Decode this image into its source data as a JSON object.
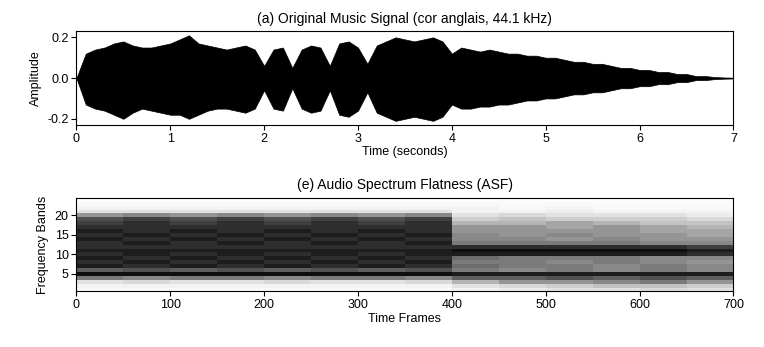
{
  "chart_data": [
    {
      "type": "area",
      "title": "(a) Original Music Signal (cor anglais, 44.1 kHz)",
      "x_label": "Time (seconds)",
      "y_label": "Amplitude",
      "color": "#000000",
      "grid": false,
      "x": [
        0.0,
        0.1,
        0.2,
        0.3,
        0.4,
        0.5,
        0.6,
        0.7,
        0.8,
        0.9,
        1.0,
        1.1,
        1.2,
        1.3,
        1.4,
        1.5,
        1.6,
        1.7,
        1.8,
        1.9,
        2.0,
        2.1,
        2.2,
        2.3,
        2.4,
        2.5,
        2.6,
        2.7,
        2.8,
        2.9,
        3.0,
        3.1,
        3.2,
        3.3,
        3.4,
        3.5,
        3.6,
        3.7,
        3.8,
        3.9,
        4.0,
        4.1,
        4.2,
        4.3,
        4.4,
        4.5,
        4.6,
        4.7,
        4.8,
        4.9,
        5.0,
        5.1,
        5.2,
        5.3,
        5.4,
        5.5,
        5.6,
        5.7,
        5.8,
        5.9,
        6.0,
        6.1,
        6.2,
        6.3,
        6.4,
        6.5,
        6.6,
        6.7,
        6.8,
        6.9,
        7.0
      ],
      "upper": [
        0.0,
        0.12,
        0.14,
        0.15,
        0.17,
        0.18,
        0.16,
        0.15,
        0.15,
        0.16,
        0.17,
        0.19,
        0.21,
        0.17,
        0.16,
        0.15,
        0.14,
        0.15,
        0.16,
        0.14,
        0.06,
        0.14,
        0.15,
        0.05,
        0.14,
        0.16,
        0.15,
        0.06,
        0.17,
        0.18,
        0.15,
        0.07,
        0.16,
        0.18,
        0.2,
        0.19,
        0.18,
        0.19,
        0.2,
        0.18,
        0.12,
        0.15,
        0.14,
        0.13,
        0.14,
        0.13,
        0.12,
        0.12,
        0.11,
        0.11,
        0.1,
        0.1,
        0.09,
        0.08,
        0.08,
        0.07,
        0.07,
        0.06,
        0.05,
        0.05,
        0.04,
        0.04,
        0.03,
        0.03,
        0.02,
        0.02,
        0.01,
        0.01,
        0.005,
        0.003,
        0.002
      ],
      "lower": [
        0.0,
        -0.13,
        -0.15,
        -0.16,
        -0.18,
        -0.2,
        -0.17,
        -0.15,
        -0.16,
        -0.17,
        -0.18,
        -0.18,
        -0.2,
        -0.18,
        -0.16,
        -0.15,
        -0.15,
        -0.16,
        -0.17,
        -0.15,
        -0.06,
        -0.15,
        -0.16,
        -0.05,
        -0.15,
        -0.17,
        -0.16,
        -0.06,
        -0.18,
        -0.19,
        -0.16,
        -0.07,
        -0.17,
        -0.19,
        -0.21,
        -0.2,
        -0.19,
        -0.2,
        -0.21,
        -0.19,
        -0.13,
        -0.15,
        -0.15,
        -0.14,
        -0.14,
        -0.13,
        -0.13,
        -0.12,
        -0.11,
        -0.11,
        -0.1,
        -0.1,
        -0.09,
        -0.08,
        -0.08,
        -0.07,
        -0.07,
        -0.06,
        -0.05,
        -0.05,
        -0.04,
        -0.04,
        -0.03,
        -0.03,
        -0.02,
        -0.02,
        -0.01,
        -0.01,
        -0.005,
        -0.003,
        -0.002
      ],
      "xlim": [
        0,
        7
      ],
      "xticks": [
        0,
        1,
        2,
        3,
        4,
        5,
        6,
        7
      ],
      "ylim": [
        -0.23,
        0.23
      ],
      "yticks": [
        {
          "value": -0.2,
          "label": "-0.2"
        },
        {
          "value": 0,
          "label": "0.0"
        },
        {
          "value": 0.2,
          "label": "0.2"
        }
      ]
    },
    {
      "type": "heatmap",
      "title": "(e) Audio Spectrum Flatness (ASF)",
      "x_label": "Time Frames",
      "y_label": "Frequency Bands",
      "color": "Greys",
      "grid": false,
      "x": [
        25,
        75,
        125,
        175,
        225,
        275,
        325,
        375,
        425,
        475,
        525,
        575,
        625,
        675
      ],
      "y": [
        1,
        2,
        3,
        4,
        5,
        6,
        7,
        8,
        9,
        10,
        11,
        12,
        13,
        14,
        15,
        16,
        17,
        18,
        19,
        20,
        21,
        22,
        23,
        24
      ],
      "cell_range": [
        0,
        1
      ],
      "cells": [
        [
          0.05,
          0.05,
          0.05,
          0.05,
          0.05,
          0.05,
          0.05,
          0.05,
          0.1,
          0.15,
          0.2,
          0.2,
          0.25,
          0.2
        ],
        [
          0.1,
          0.1,
          0.1,
          0.1,
          0.1,
          0.1,
          0.1,
          0.1,
          0.2,
          0.25,
          0.3,
          0.35,
          0.35,
          0.3
        ],
        [
          0.2,
          0.25,
          0.2,
          0.2,
          0.25,
          0.2,
          0.2,
          0.25,
          0.4,
          0.5,
          0.5,
          0.55,
          0.6,
          0.5
        ],
        [
          0.6,
          0.55,
          0.6,
          0.6,
          0.55,
          0.6,
          0.6,
          0.55,
          0.7,
          0.7,
          0.75,
          0.7,
          0.75,
          0.7
        ],
        [
          0.95,
          0.95,
          0.95,
          0.95,
          0.95,
          0.95,
          0.95,
          0.95,
          0.9,
          0.9,
          0.9,
          0.9,
          0.9,
          0.9
        ],
        [
          0.7,
          0.75,
          0.7,
          0.75,
          0.7,
          0.75,
          0.7,
          0.75,
          0.6,
          0.55,
          0.6,
          0.55,
          0.6,
          0.55
        ],
        [
          0.9,
          0.85,
          0.9,
          0.85,
          0.9,
          0.85,
          0.9,
          0.85,
          0.65,
          0.6,
          0.6,
          0.55,
          0.6,
          0.55
        ],
        [
          0.85,
          0.9,
          0.85,
          0.9,
          0.85,
          0.9,
          0.85,
          0.9,
          0.6,
          0.6,
          0.55,
          0.6,
          0.55,
          0.5
        ],
        [
          0.9,
          0.85,
          0.9,
          0.85,
          0.9,
          0.85,
          0.9,
          0.85,
          0.65,
          0.6,
          0.6,
          0.6,
          0.55,
          0.55
        ],
        [
          0.85,
          0.9,
          0.85,
          0.9,
          0.85,
          0.9,
          0.85,
          0.9,
          0.9,
          0.9,
          0.9,
          0.9,
          0.9,
          0.85
        ],
        [
          0.9,
          0.9,
          0.9,
          0.9,
          0.9,
          0.9,
          0.9,
          0.9,
          0.95,
          0.95,
          0.95,
          0.95,
          0.95,
          0.9
        ],
        [
          0.85,
          0.85,
          0.85,
          0.85,
          0.85,
          0.85,
          0.85,
          0.85,
          0.85,
          0.85,
          0.85,
          0.85,
          0.85,
          0.8
        ],
        [
          0.85,
          0.9,
          0.85,
          0.9,
          0.85,
          0.9,
          0.85,
          0.9,
          0.6,
          0.6,
          0.6,
          0.6,
          0.55,
          0.55
        ],
        [
          0.9,
          0.85,
          0.9,
          0.85,
          0.9,
          0.85,
          0.9,
          0.85,
          0.55,
          0.55,
          0.5,
          0.55,
          0.5,
          0.5
        ],
        [
          0.85,
          0.9,
          0.85,
          0.9,
          0.85,
          0.9,
          0.85,
          0.9,
          0.55,
          0.5,
          0.55,
          0.5,
          0.5,
          0.45
        ],
        [
          0.9,
          0.85,
          0.9,
          0.85,
          0.9,
          0.85,
          0.9,
          0.85,
          0.5,
          0.5,
          0.5,
          0.5,
          0.45,
          0.45
        ],
        [
          0.85,
          0.85,
          0.85,
          0.85,
          0.85,
          0.85,
          0.85,
          0.85,
          0.5,
          0.5,
          0.45,
          0.5,
          0.45,
          0.4
        ],
        [
          0.8,
          0.85,
          0.8,
          0.85,
          0.8,
          0.85,
          0.8,
          0.85,
          0.4,
          0.4,
          0.45,
          0.4,
          0.35,
          0.35
        ],
        [
          0.75,
          0.8,
          0.75,
          0.8,
          0.75,
          0.8,
          0.75,
          0.8,
          0.3,
          0.35,
          0.3,
          0.3,
          0.3,
          0.25
        ],
        [
          0.5,
          0.55,
          0.5,
          0.55,
          0.5,
          0.55,
          0.5,
          0.55,
          0.2,
          0.25,
          0.2,
          0.2,
          0.2,
          0.15
        ],
        [
          0.2,
          0.2,
          0.2,
          0.2,
          0.2,
          0.2,
          0.2,
          0.2,
          0.1,
          0.1,
          0.15,
          0.1,
          0.1,
          0.1
        ],
        [
          0.1,
          0.1,
          0.1,
          0.1,
          0.1,
          0.1,
          0.1,
          0.1,
          0.1,
          0.05,
          0.1,
          0.05,
          0.05,
          0.05
        ],
        [
          0.05,
          0.05,
          0.05,
          0.05,
          0.05,
          0.05,
          0.05,
          0.05,
          0.05,
          0.05,
          0.05,
          0.05,
          0.05,
          0.05
        ],
        [
          0.03,
          0.03,
          0.03,
          0.03,
          0.03,
          0.03,
          0.03,
          0.03,
          0.03,
          0.03,
          0.03,
          0.03,
          0.03,
          0.03
        ]
      ],
      "xlim": [
        0,
        700
      ],
      "xticks": [
        0,
        100,
        200,
        300,
        400,
        500,
        600,
        700
      ],
      "ylim": [
        0.5,
        24.5
      ],
      "yticks": [
        5,
        10,
        15,
        20
      ]
    }
  ]
}
